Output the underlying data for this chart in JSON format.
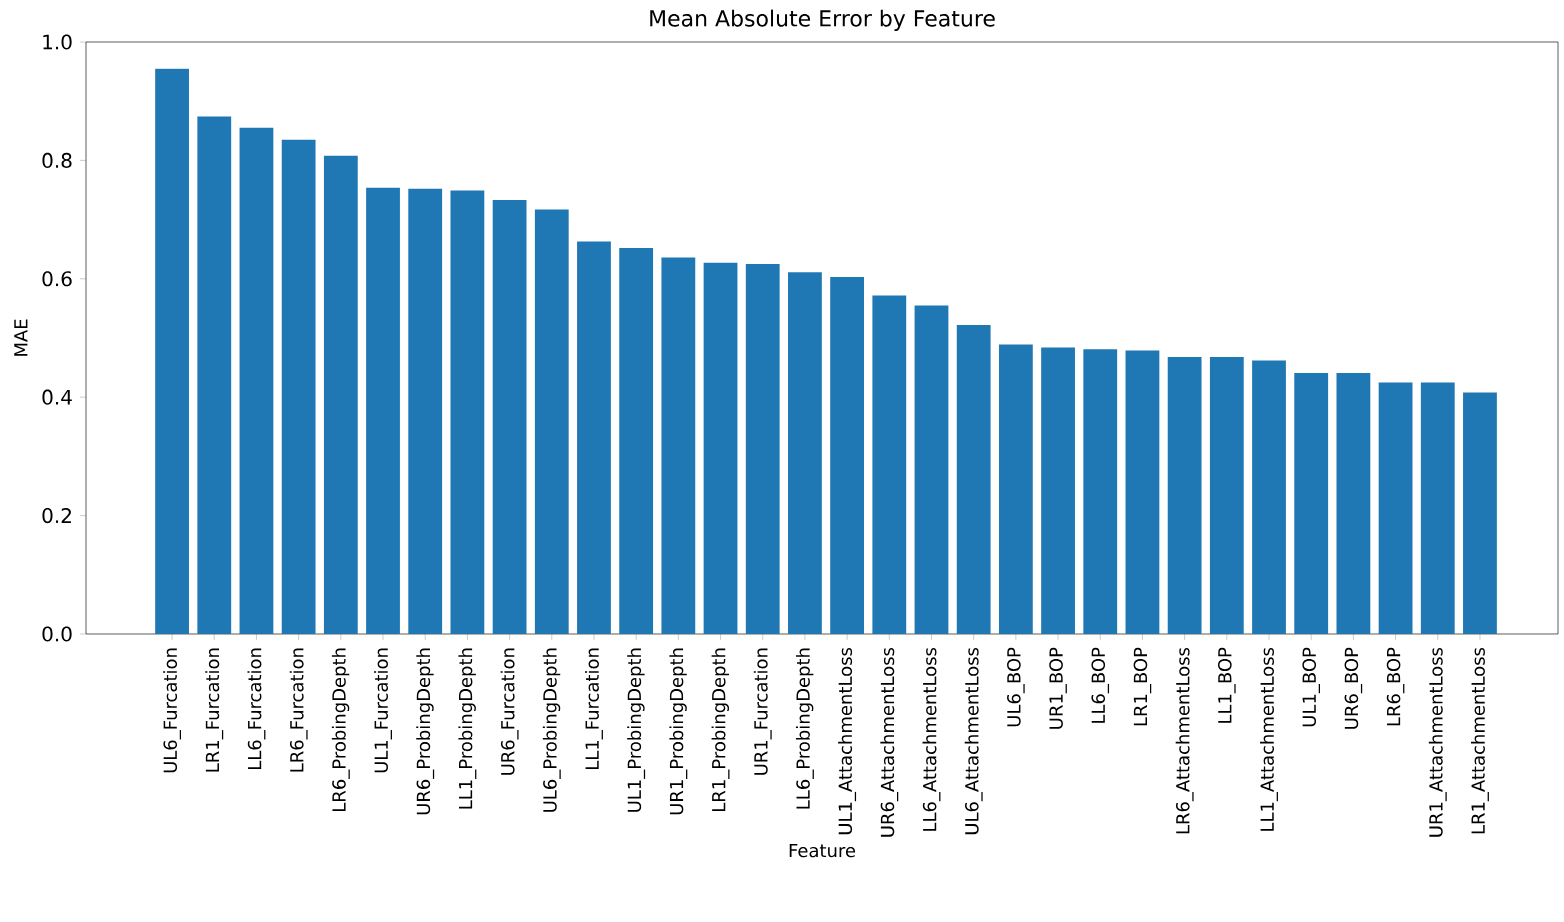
{
  "chart_data": {
    "type": "bar",
    "title": "Mean Absolute Error by Feature",
    "xlabel": "Feature",
    "ylabel": "MAE",
    "categories": [
      "UL6_Furcation",
      "LR1_Furcation",
      "LL6_Furcation",
      "LR6_Furcation",
      "LR6_ProbingDepth",
      "UL1_Furcation",
      "UR6_ProbingDepth",
      "LL1_ProbingDepth",
      "UR6_Furcation",
      "UL6_ProbingDepth",
      "LL1_Furcation",
      "UL1_ProbingDepth",
      "UR1_ProbingDepth",
      "LR1_ProbingDepth",
      "UR1_Furcation",
      "LL6_ProbingDepth",
      "UL1_AttachmentLoss",
      "UR6_AttachmentLoss",
      "LL6_AttachmentLoss",
      "UL6_AttachmentLoss",
      "UL6_BOP",
      "UR1_BOP",
      "LL6_BOP",
      "LR1_BOP",
      "LR6_AttachmentLoss",
      "LL1_BOP",
      "LL1_AttachmentLoss",
      "UL1_BOP",
      "UR6_BOP",
      "LR6_BOP",
      "UR1_AttachmentLoss",
      "LR1_AttachmentLoss"
    ],
    "values": [
      0.955,
      0.874,
      0.855,
      0.835,
      0.808,
      0.754,
      0.752,
      0.749,
      0.733,
      0.717,
      0.663,
      0.652,
      0.636,
      0.627,
      0.625,
      0.611,
      0.603,
      0.572,
      0.555,
      0.522,
      0.489,
      0.484,
      0.481,
      0.479,
      0.468,
      0.468,
      0.462,
      0.441,
      0.441,
      0.425,
      0.425,
      0.408
    ],
    "color": "#1f77b4",
    "ylim": [
      0,
      1.0
    ],
    "yticks": [
      {
        "value": 0,
        "label": "0.0"
      },
      0.2,
      0.4,
      0.6,
      0.8,
      {
        "value": 1.0,
        "label": "1.0"
      }
    ]
  }
}
